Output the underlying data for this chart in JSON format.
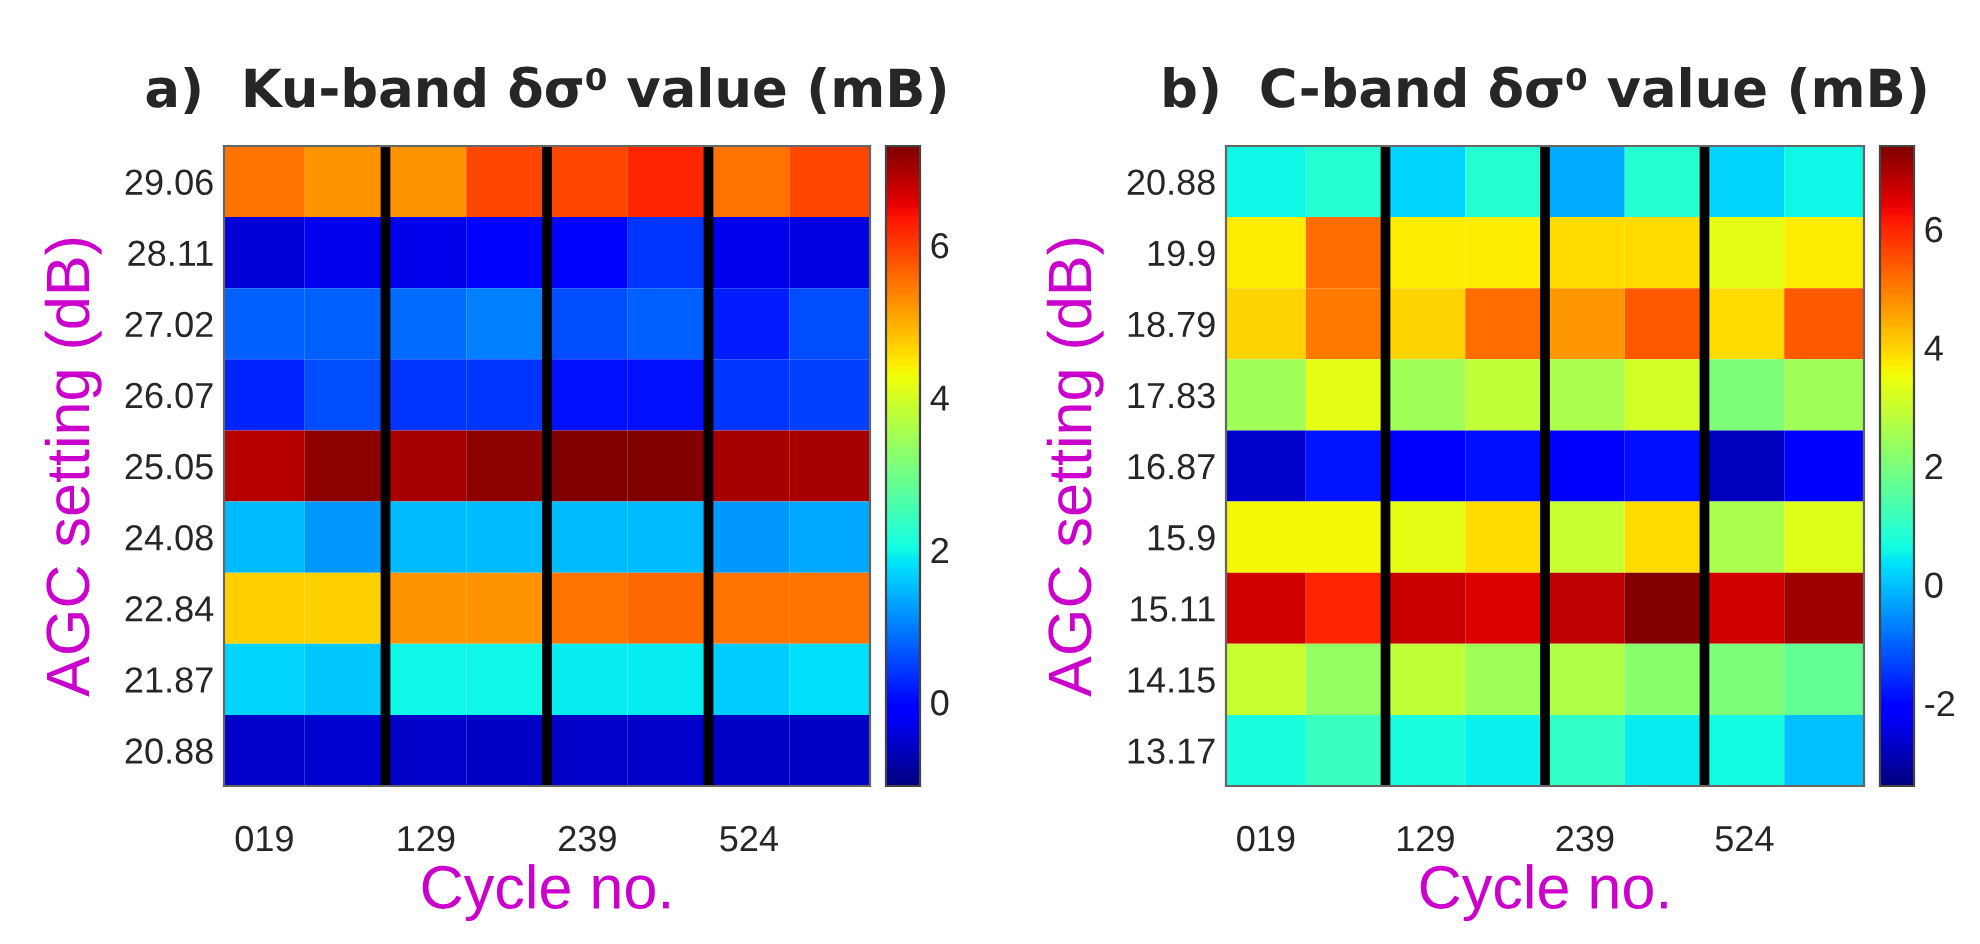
{
  "chart_data": [
    {
      "type": "heatmap",
      "title": "a)  Ku-band δσ⁰ value (mB)",
      "xlabel": "Cycle no.",
      "ylabel": "AGC setting (dB)",
      "categories": [
        "019",
        null,
        "129",
        null,
        "239",
        null,
        "524",
        null
      ],
      "y_categories": [
        "29.06",
        "28.11",
        "27.02",
        "26.07",
        "25.05",
        "24.08",
        "22.84",
        "21.87",
        "20.88"
      ],
      "cells": [
        [
          5.5,
          5.2,
          5.2,
          5.9,
          5.9,
          6.2,
          5.5,
          5.9
        ],
        [
          -0.45,
          -0.3,
          -0.3,
          0.0,
          0.0,
          0.4,
          -0.3,
          -0.35
        ],
        [
          0.75,
          0.75,
          0.85,
          1.0,
          0.6,
          0.75,
          0.2,
          0.6
        ],
        [
          0.25,
          0.6,
          0.4,
          0.4,
          0.1,
          0.1,
          0.4,
          0.5
        ],
        [
          6.9,
          7.2,
          7.0,
          7.2,
          7.3,
          7.3,
          7.0,
          7.0
        ],
        [
          1.5,
          1.2,
          1.5,
          1.5,
          1.5,
          1.5,
          1.2,
          1.35
        ],
        [
          4.7,
          4.7,
          5.2,
          5.2,
          5.5,
          5.6,
          5.5,
          5.5
        ],
        [
          1.7,
          1.6,
          2.0,
          2.0,
          1.9,
          1.9,
          1.65,
          1.8
        ],
        [
          -0.55,
          -0.5,
          -0.55,
          -0.6,
          -0.55,
          -0.55,
          -0.6,
          -0.6
        ]
      ],
      "clim": [
        -1.1,
        7.3
      ],
      "cticks": [
        0,
        2,
        4,
        6
      ]
    },
    {
      "type": "heatmap",
      "title": "b)  C-band δσ⁰ value (mB)",
      "xlabel": "Cycle no.",
      "ylabel": "AGC setting (dB)",
      "categories": [
        "019",
        null,
        "129",
        null,
        "239",
        null,
        "524",
        null
      ],
      "y_categories": [
        "20.88",
        "19.9",
        "18.79",
        "17.83",
        "16.87",
        "15.9",
        "15.11",
        "14.15",
        "13.17"
      ],
      "cells": [
        [
          0.6,
          0.9,
          0.2,
          0.9,
          -0.2,
          0.9,
          0.2,
          0.6
        ],
        [
          3.7,
          5.2,
          3.7,
          3.7,
          3.9,
          3.9,
          3.35,
          3.7
        ],
        [
          4.0,
          5.0,
          4.0,
          5.2,
          4.7,
          5.4,
          3.9,
          5.4
        ],
        [
          2.5,
          3.35,
          2.5,
          2.9,
          2.6,
          3.1,
          2.0,
          2.5
        ],
        [
          -2.65,
          -1.8,
          -2.2,
          -1.9,
          -2.2,
          -1.9,
          -2.8,
          -2.2
        ],
        [
          3.6,
          3.6,
          3.35,
          3.9,
          3.0,
          3.9,
          2.6,
          3.3
        ],
        [
          6.6,
          6.0,
          6.7,
          6.5,
          6.8,
          7.4,
          6.6,
          7.1
        ],
        [
          3.0,
          2.3,
          2.9,
          2.5,
          2.7,
          2.2,
          2.0,
          1.7
        ],
        [
          0.7,
          1.1,
          0.7,
          0.5,
          1.0,
          0.45,
          0.65,
          0.0
        ]
      ],
      "clim": [
        -3.4,
        7.4
      ],
      "cticks": [
        -2,
        0,
        2,
        4,
        6
      ]
    }
  ]
}
